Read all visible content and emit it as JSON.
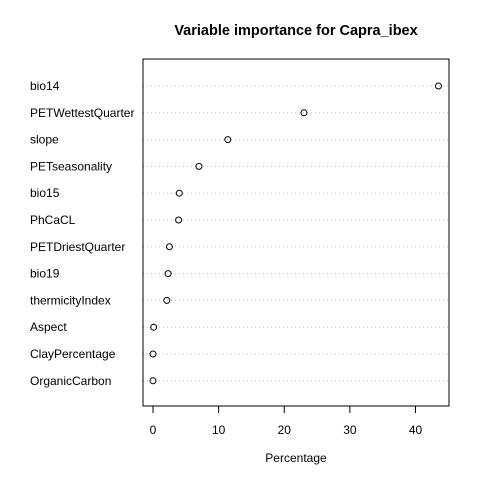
{
  "chart_data": {
    "type": "scatter",
    "style": "dotchart",
    "title": "Variable importance for Capra_ibex",
    "xlabel": "Percentage",
    "ylabel": "",
    "xlim": [
      -1.5,
      44.8
    ],
    "xticks": [
      0,
      10,
      20,
      30,
      40
    ],
    "grid": "dotted horizontal",
    "categories": [
      "bio14",
      "PETWettestQuarter",
      "slope",
      "PETseasonality",
      "bio15",
      "PhCaCL",
      "PETDriestQuarter",
      "bio19",
      "thermicityIndex",
      "Aspect",
      "ClayPercentage",
      "OrganicCarbon"
    ],
    "values": [
      43.5,
      23.0,
      11.4,
      7.0,
      4.0,
      3.9,
      2.5,
      2.3,
      2.1,
      0.1,
      0.0,
      0.0
    ]
  }
}
